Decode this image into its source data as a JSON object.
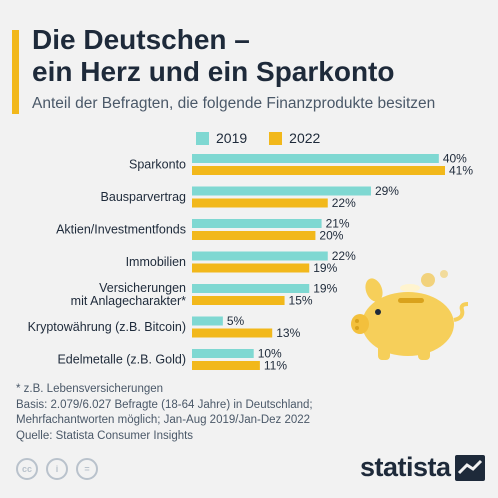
{
  "header": {
    "title_line1": "Die Deutschen –",
    "title_line2": "ein Herz und ein Sparkonto",
    "subtitle": "Anteil der Befragten, die folgende Finanzprodukte besitzen"
  },
  "chart_data": {
    "type": "bar",
    "orientation": "horizontal",
    "categories": [
      "Sparkonto",
      "Bausparvertrag",
      "Aktien/Investmentfonds",
      "Immobilien",
      "Versicherungen mit Anlagecharakter*",
      "Kryptowährung (z.B. Bitcoin)",
      "Edelmetalle (z.B. Gold)"
    ],
    "category_lines": [
      [
        "Sparkonto"
      ],
      [
        "Bausparvertrag"
      ],
      [
        "Aktien/Investmentfonds"
      ],
      [
        "Immobilien"
      ],
      [
        "Versicherungen",
        "mit Anlagecharakter*"
      ],
      [
        "Kryptowährung (z.B. Bitcoin)"
      ],
      [
        "Edelmetalle (z.B. Gold)"
      ]
    ],
    "series": [
      {
        "name": "2019",
        "values": [
          40,
          29,
          21,
          22,
          19,
          5,
          10
        ],
        "color": "#7fd8d2"
      },
      {
        "name": "2022",
        "values": [
          41,
          22,
          20,
          19,
          15,
          13,
          11
        ],
        "color": "#f2b81b"
      }
    ],
    "value_suffix": "%",
    "xlim": [
      0,
      41
    ],
    "grid": false,
    "legend_position": "top"
  },
  "footnotes": {
    "line1": "* z.B. Lebensversicherungen",
    "line2": "Basis: 2.079/6.027 Befragte (18-64 Jahre) in Deutschland;",
    "line3": "Mehrfachantworten möglich; Jan-Aug 2019/Jan-Dez 2022",
    "line4": "Quelle: Statista Consumer Insights"
  },
  "license_icons": [
    {
      "name": "cc-icon",
      "glyph": "cc"
    },
    {
      "name": "attribution-icon",
      "glyph": "i"
    },
    {
      "name": "no-derivatives-icon",
      "glyph": "="
    }
  ],
  "brand": {
    "name": "statista"
  },
  "colors": {
    "accent": "#f2b81b",
    "teal": "#7fd8d2",
    "text": "#1e2a3a"
  }
}
